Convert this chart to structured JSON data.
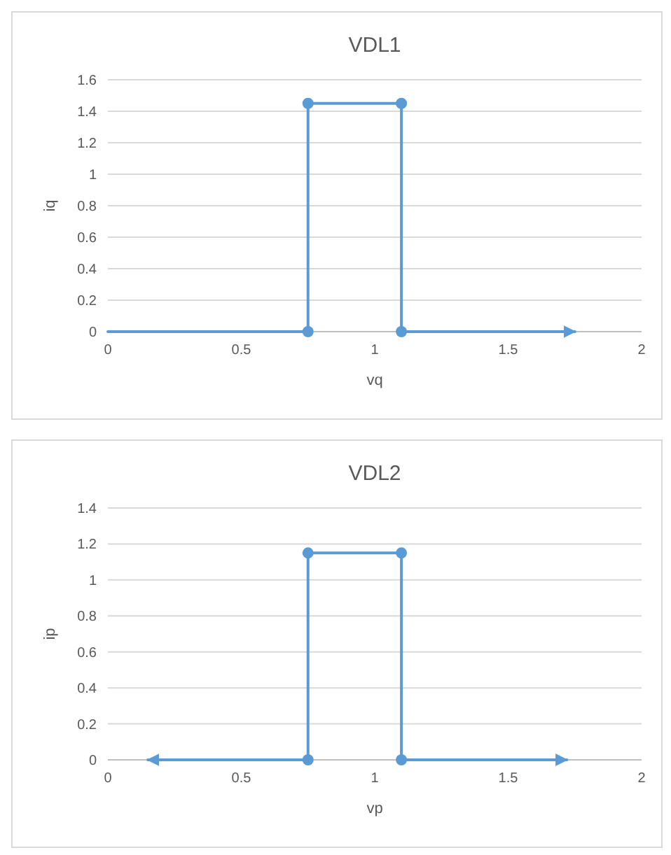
{
  "chart_data": [
    {
      "type": "line",
      "title": "VDL1",
      "xlabel": "vq",
      "ylabel": "iq",
      "xlim": [
        0,
        2
      ],
      "xticks": [
        0,
        0.5,
        1,
        1.5,
        2
      ],
      "ylim": [
        0,
        1.6
      ],
      "yticks": [
        0,
        0.2,
        0.4,
        0.6,
        0.8,
        1,
        1.2,
        1.4,
        1.6
      ],
      "grid": "y",
      "marker": "circle",
      "line_style": "solid",
      "series": [
        {
          "color": "#5b9bd5",
          "x": [
            0,
            0.75,
            0.75,
            1.1,
            1.1,
            1.75
          ],
          "values": [
            0,
            0,
            1.45,
            1.45,
            0,
            0
          ]
        }
      ]
    },
    {
      "type": "line",
      "title": "VDL2",
      "xlabel": "vp",
      "ylabel": "ip",
      "xlim": [
        0,
        2
      ],
      "xticks": [
        0,
        0.5,
        1,
        1.5,
        2
      ],
      "ylim": [
        0,
        1.4
      ],
      "yticks": [
        0,
        0.2,
        0.4,
        0.6,
        0.8,
        1,
        1.2,
        1.4
      ],
      "grid": "y",
      "marker": "circle",
      "line_style": "solid",
      "series": [
        {
          "color": "#5b9bd5",
          "x": [
            0.15,
            0.75,
            0.75,
            1.1,
            1.1,
            1.72
          ],
          "values": [
            0,
            0,
            1.15,
            1.15,
            0,
            0
          ]
        }
      ]
    }
  ]
}
